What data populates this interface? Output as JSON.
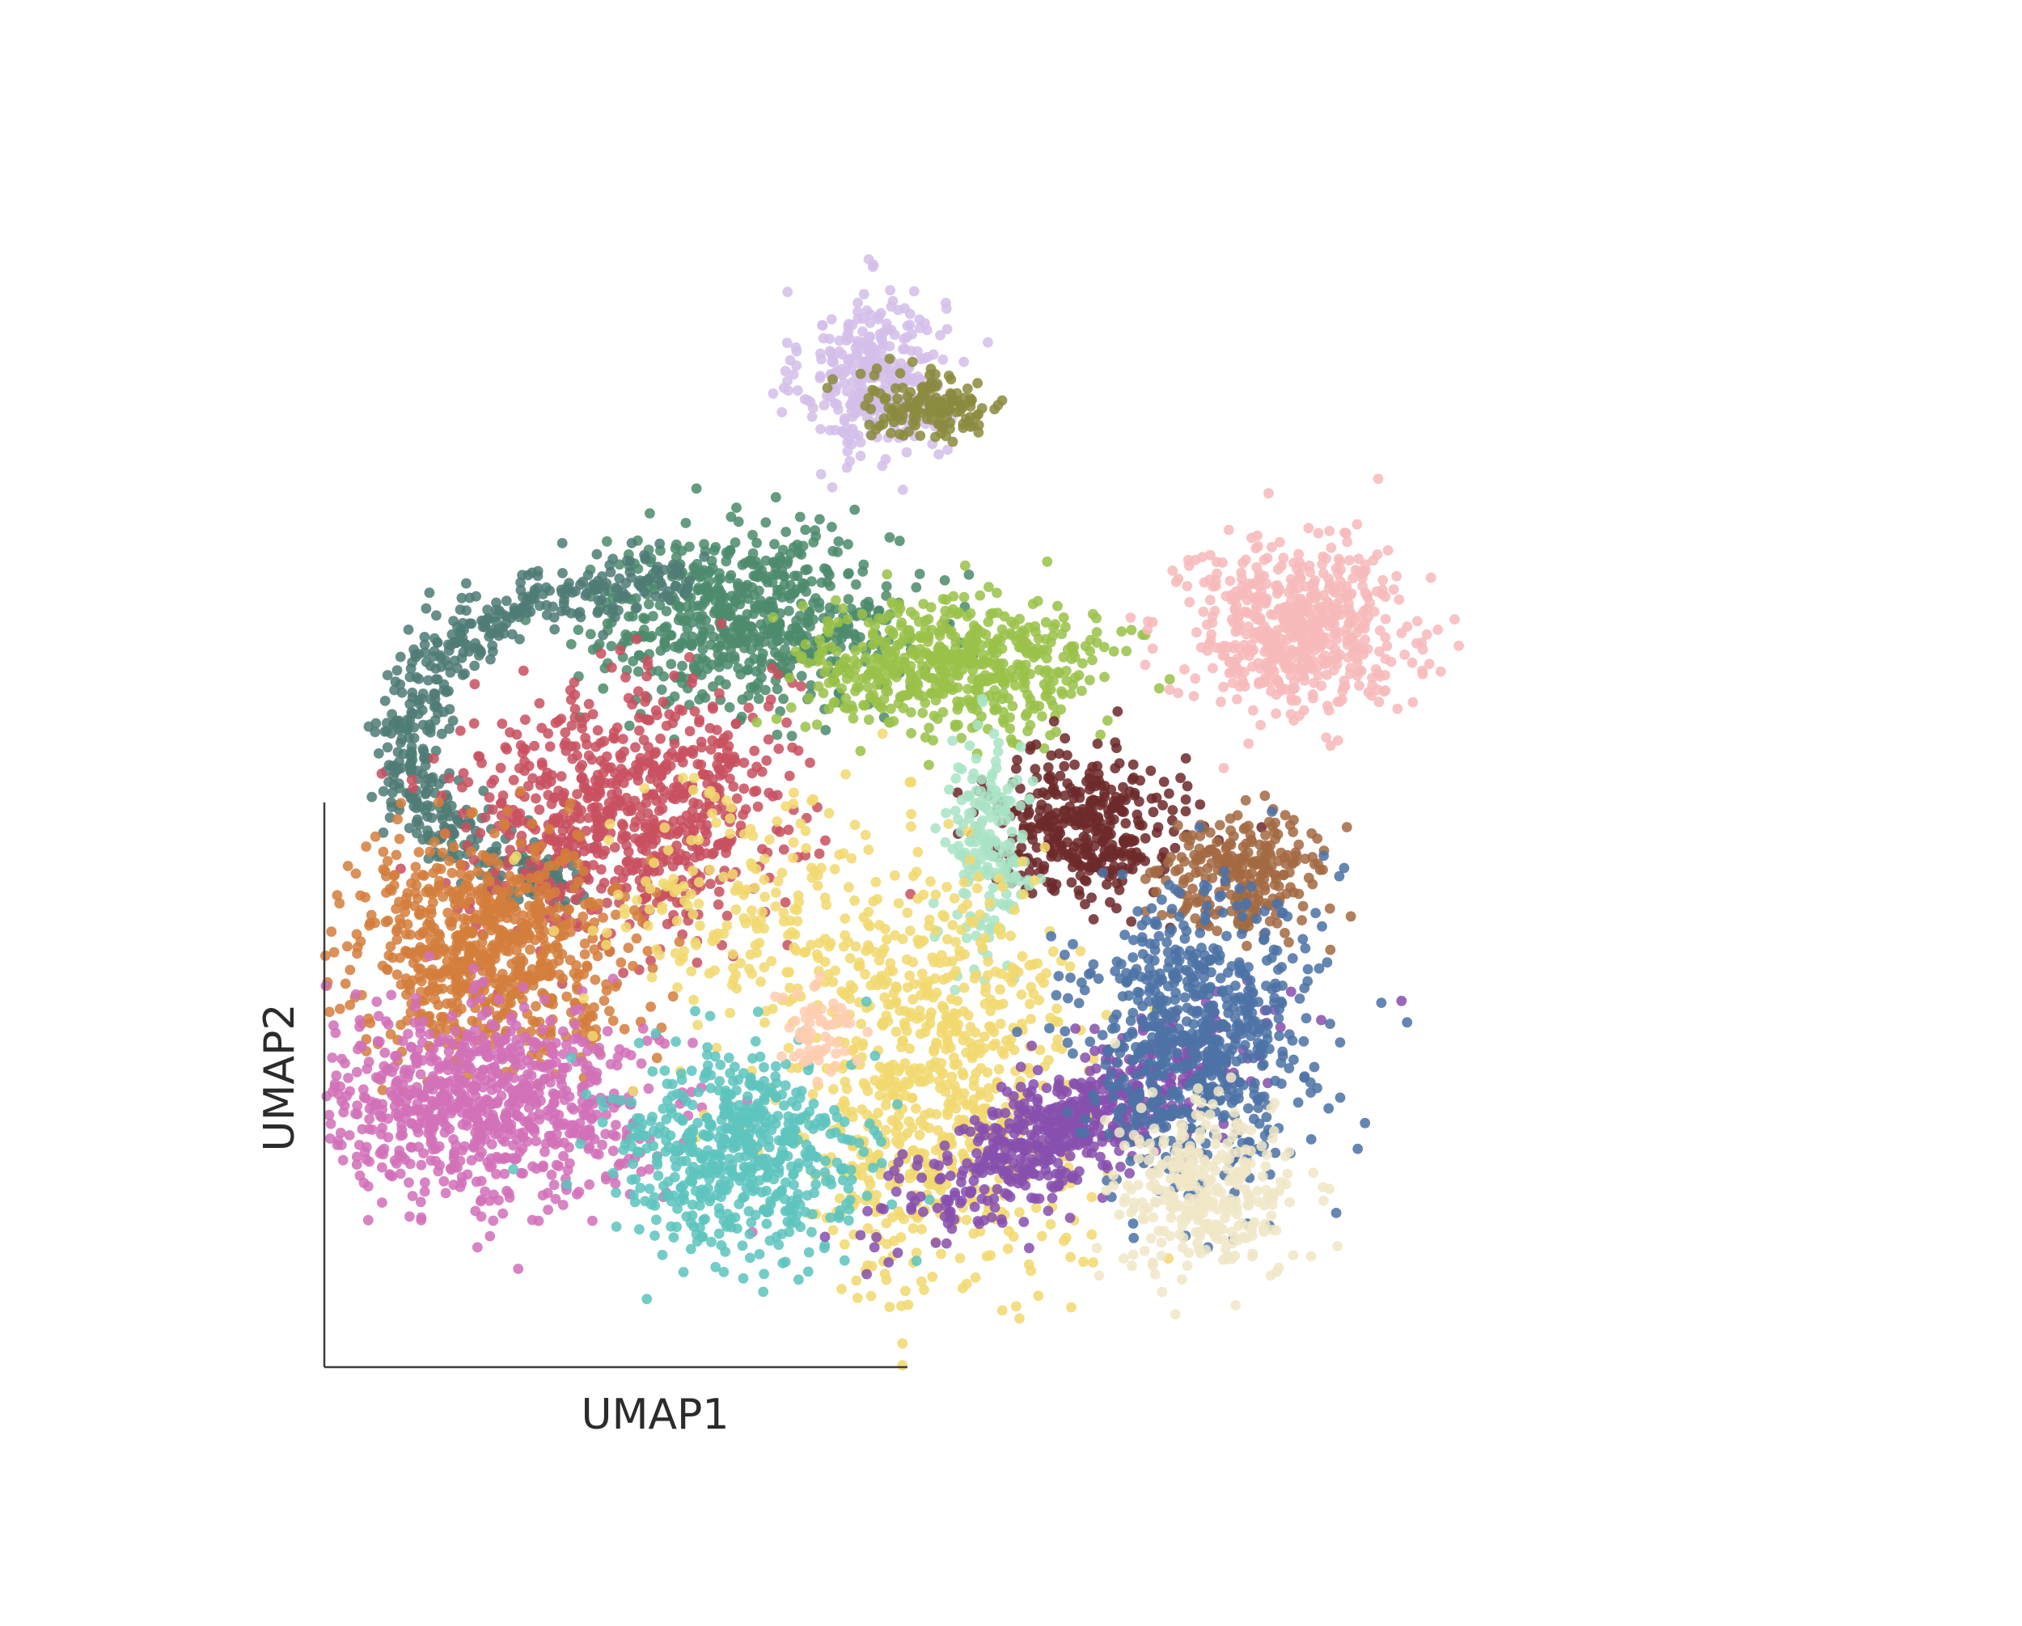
{
  "chart_data": {
    "type": "scatter",
    "title": "",
    "xlabel": "UMAP1",
    "ylabel": "UMAP2",
    "xlim": [
      0,
      100
    ],
    "ylim": [
      0,
      100
    ],
    "grid": false,
    "legend": "none",
    "ticks": false,
    "seed": 20240611,
    "series": [
      {
        "color": "#d3bfe9",
        "count": 330,
        "x": 40.2,
        "y": 82.8,
        "sx": 2.6,
        "sy": 3.6,
        "note_shape": "lavender-cap"
      },
      {
        "color": "#8a8b3f",
        "count": 150,
        "x": 44.4,
        "y": 80.3,
        "sx": 2.8,
        "sy": 1.4
      },
      {
        "color": "#4d8b6c",
        "count": 650,
        "x": 31.0,
        "y": 62.5,
        "sx": 5.6,
        "sy": 3.6
      },
      {
        "color": "#4f7b76",
        "count": 520,
        "x": 17.0,
        "y": 52.5,
        "sx": 7.2,
        "sy": 7.2,
        "arc": true
      },
      {
        "color": "#c8505f",
        "count": 760,
        "x": 22.0,
        "y": 46.5,
        "sx": 5.6,
        "sy": 5.2
      },
      {
        "color": "#d47e3c",
        "count": 760,
        "x": 12.2,
        "y": 35.0,
        "sx": 5.2,
        "sy": 4.4
      },
      {
        "color": "#d270b8",
        "count": 820,
        "x": 11.8,
        "y": 21.8,
        "sx": 6.2,
        "sy": 4.0
      },
      {
        "color": "#9ac149",
        "count": 560,
        "x": 46.0,
        "y": 58.6,
        "sx": 5.4,
        "sy": 2.8
      },
      {
        "color": "#f7b9ba",
        "count": 560,
        "x": 71.0,
        "y": 61.5,
        "sx": 4.1,
        "sy": 3.6
      },
      {
        "color": "#6e2a2b",
        "count": 360,
        "x": 55.5,
        "y": 45.0,
        "sx": 3.6,
        "sy": 3.0
      },
      {
        "color": "#a9e3c5",
        "count": 190,
        "x": 48.5,
        "y": 43.0,
        "sx": 1.6,
        "sy": 4.2
      },
      {
        "color": "#a36a42",
        "count": 260,
        "x": 67.0,
        "y": 41.5,
        "sx": 3.0,
        "sy": 2.4
      },
      {
        "color": "#f1d86f",
        "count": 780,
        "x": 44.5,
        "y": 24.0,
        "sx": 5.2,
        "sy": 8.5
      },
      {
        "color": "#f1d86f",
        "count": 190,
        "x": 30.0,
        "y": 37.0,
        "sx": 5.4,
        "sy": 6.2
      },
      {
        "color": "#5dc4be",
        "count": 560,
        "x": 30.0,
        "y": 18.0,
        "sx": 4.6,
        "sy": 4.2
      },
      {
        "color": "#ffcdb0",
        "count": 60,
        "x": 35.8,
        "y": 28.0,
        "sx": 1.6,
        "sy": 1.8
      },
      {
        "color": "#874fae",
        "count": 620,
        "x": 54.5,
        "y": 20.0,
        "sx": 7.0,
        "sy": 2.4,
        "tilt": 0.55
      },
      {
        "color": "#4d72a5",
        "count": 700,
        "x": 63.5,
        "y": 27.5,
        "sx": 4.2,
        "sy": 6.2
      },
      {
        "color": "#f0e6c7",
        "count": 320,
        "x": 64.5,
        "y": 14.5,
        "sx": 3.2,
        "sy": 3.6
      }
    ]
  }
}
